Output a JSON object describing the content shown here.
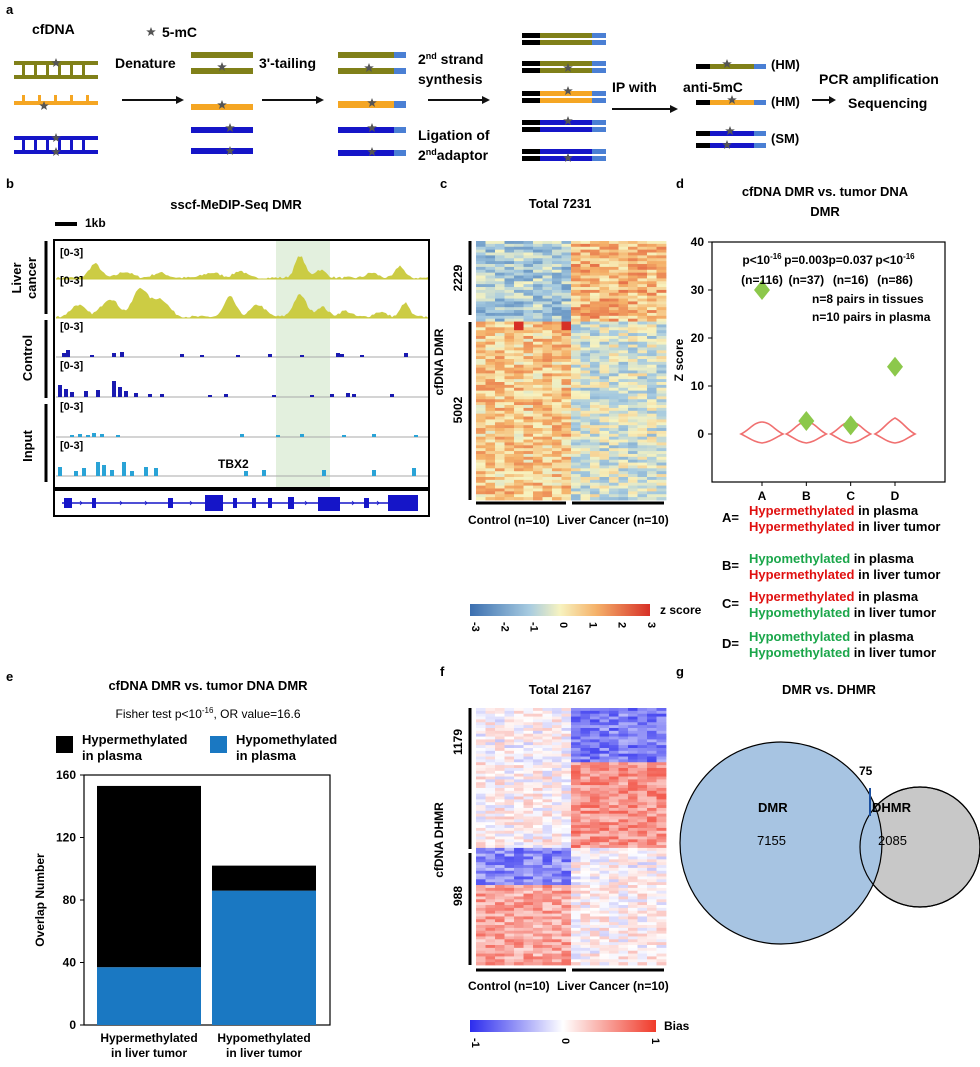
{
  "panel_a": {
    "letter": "a",
    "cfdna": "cfDNA",
    "star_legend": "5-mC",
    "denature": "Denature",
    "tailing": "3'-tailing",
    "second_strand_1": "2",
    "second_strand_sup": "nd",
    "second_strand_2": " strand",
    "synthesis": "synthesis",
    "ligation": "Ligation of",
    "adaptor_1": "2",
    "adaptor_sup": "nd",
    "adaptor_2": "adaptor",
    "ip_with": "IP with",
    "anti": "anti-5mC",
    "hm1": "(HM)",
    "hm2": "(HM)",
    "sm": "(SM)",
    "pcr": "PCR amplification",
    "sequencing": "Sequencing",
    "colors": {
      "olive": "#808019",
      "orange": "#f5a623",
      "blue": "#1515c8",
      "adaptor": "#4a7fd4",
      "star": "#555555"
    }
  },
  "panel_b": {
    "letter": "b",
    "title": "sscf-MeDIP-Seq DMR",
    "scale": "1kb",
    "groups": [
      "Liver cancer",
      "Control",
      "Input"
    ],
    "group_lines": [
      [
        "Liver",
        "cancer"
      ],
      [
        "Control"
      ],
      [
        "Input"
      ]
    ],
    "range_label": "[0-3]",
    "gene": "TBX2",
    "colors": {
      "cancer": "#c9c93a",
      "control": "#1a1ab0",
      "input": "#2aa3d6",
      "highlight": "#e3f0de",
      "gene": "#1515c8"
    }
  },
  "panel_c": {
    "letter": "c",
    "title": "Total 7231",
    "ylabel": "cfDNA DMR",
    "row_groups": [
      "2229",
      "5002"
    ],
    "col_groups": [
      "Control (n=10)",
      "Liver Cancer (n=10)"
    ],
    "legend_title": "z score",
    "legend_ticks": [
      "-3",
      "-2",
      "-1",
      "0",
      "1",
      "2",
      "3"
    ]
  },
  "panel_d": {
    "letter": "d",
    "title_1": "cfDNA DMR vs. tumor DNA",
    "title_2": "DMR",
    "ylabel": "Z score",
    "note_1": "n=8 pairs in tissues",
    "note_2": "n=10 pairs in plasma",
    "legend": [
      {
        "key": "A=",
        "line1_word": "Hypermethylated",
        "line1_rest": " in plasma",
        "line1_color": "#e01010",
        "line2_word": "Hypermethylated",
        "line2_rest": " in liver tumor",
        "line2_color": "#e01010"
      },
      {
        "key": "B=",
        "line1_word": "Hypomethylated",
        "line1_rest": " in plasma",
        "line1_color": "#1aa64a",
        "line2_word": "Hypermethylated",
        "line2_rest": " in liver tumor",
        "line2_color": "#e01010"
      },
      {
        "key": "C=",
        "line1_word": "Hypermethylated",
        "line1_rest": " in plasma",
        "line1_color": "#e01010",
        "line2_word": "Hypomethylated",
        "line2_rest": " in liver tumor",
        "line2_color": "#1aa64a"
      },
      {
        "key": "D=",
        "line1_word": "Hypomethylated",
        "line1_rest": " in plasma",
        "line1_color": "#1aa64a",
        "line2_word": "Hypomethylated",
        "line2_rest": " in liver tumor",
        "line2_color": "#1aa64a"
      }
    ]
  },
  "panel_e": {
    "letter": "e",
    "title": "cfDNA DMR vs. tumor DNA DMR",
    "fisher_pre": "Fisher test p<10",
    "fisher_sup": "-16",
    "fisher_post": ", OR value=16.6",
    "legend_hyper_1": "Hypermethylated",
    "legend_hyper_2": "in plasma",
    "legend_hypo_1": "Hypomethylated",
    "legend_hypo_2": "in plasma",
    "colors": {
      "hyper": "#000000",
      "hypo": "#1a78c2"
    }
  },
  "panel_f": {
    "letter": "f",
    "title": "Total 2167",
    "ylabel": "cfDNA DHMR",
    "row_groups": [
      "1179",
      "988"
    ],
    "col_groups": [
      "Control (n=10)",
      "Liver Cancer (n=10)"
    ],
    "legend_title": "Bias",
    "legend_ticks": [
      "-1",
      "0",
      "1"
    ]
  },
  "panel_g": {
    "letter": "g",
    "title": "DMR vs. DHMR",
    "dmr_label": "DMR",
    "dmr_only": "7155",
    "dhmr_label": "DHMR",
    "dhmr_only": "2085",
    "overlap": "75",
    "colors": {
      "dmr": "#a7c4e2",
      "dhmr": "#c8c8c8"
    }
  },
  "chart_data": [
    {
      "id": "panel_d",
      "type": "scatter",
      "categories": [
        "A",
        "B",
        "C",
        "D"
      ],
      "values": [
        30,
        2.7,
        1.8,
        14
      ],
      "violin_centers": [
        0,
        0,
        0,
        0
      ],
      "annotations": [
        {
          "p_pre": "p<10",
          "p_sup": "-16",
          "n": "(n=116)"
        },
        {
          "p_pre": "p=0.003",
          "p_sup": "",
          "n": "(n=37)"
        },
        {
          "p_pre": "p=0.037",
          "p_sup": "",
          "n": "(n=16)"
        },
        {
          "p_pre": "p<10",
          "p_sup": "-16",
          "n": "(n=86)"
        }
      ],
      "ylabel": "Z score",
      "ylim": [
        -10,
        40
      ],
      "yticks": [
        0,
        10,
        20,
        30,
        40
      ],
      "colors": {
        "marker": "#8cc84b",
        "violin": "#f07070"
      }
    },
    {
      "id": "panel_e",
      "type": "bar",
      "stacked": true,
      "categories": [
        "Hypermethylated\nin liver tumor",
        "Hypomethylated\nin liver tumor"
      ],
      "category_lines": [
        [
          "Hypermethylated",
          "in liver tumor"
        ],
        [
          "Hypomethylated",
          "in liver tumor"
        ]
      ],
      "series": [
        {
          "name": "Hypomethylated in plasma",
          "values": [
            37,
            86
          ]
        },
        {
          "name": "Hypermethylated in plasma",
          "values": [
            116,
            16
          ]
        }
      ],
      "ylabel": "Overlap Number",
      "ylim": [
        0,
        160
      ],
      "yticks": [
        0,
        40,
        80,
        120,
        160
      ]
    }
  ]
}
